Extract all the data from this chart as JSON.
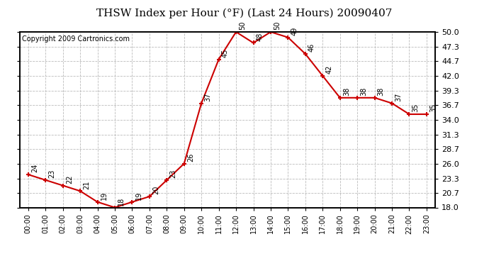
{
  "title": "THSW Index per Hour (°F) (Last 24 Hours) 20090407",
  "copyright": "Copyright 2009 Cartronics.com",
  "hours": [
    0,
    1,
    2,
    3,
    4,
    5,
    6,
    7,
    8,
    9,
    10,
    11,
    12,
    13,
    14,
    15,
    16,
    17,
    18,
    19,
    20,
    21,
    22,
    23
  ],
  "values": [
    24,
    23,
    22,
    21,
    19,
    18,
    19,
    20,
    23,
    26,
    37,
    45,
    50,
    48,
    50,
    49,
    46,
    42,
    38,
    38,
    38,
    37,
    35,
    35
  ],
  "x_labels": [
    "00:00",
    "01:00",
    "02:00",
    "03:00",
    "04:00",
    "05:00",
    "06:00",
    "07:00",
    "08:00",
    "09:00",
    "10:00",
    "11:00",
    "12:00",
    "13:00",
    "14:00",
    "15:00",
    "16:00",
    "17:00",
    "18:00",
    "19:00",
    "20:00",
    "21:00",
    "22:00",
    "23:00"
  ],
  "y_ticks": [
    18.0,
    20.7,
    23.3,
    26.0,
    28.7,
    31.3,
    34.0,
    36.7,
    39.3,
    42.0,
    44.7,
    47.3,
    50.0
  ],
  "y_min": 18.0,
  "y_max": 50.0,
  "line_color": "#cc0000",
  "marker_color": "#cc0000",
  "grid_color": "#bbbbbb",
  "bg_color": "#ffffff",
  "plot_bg_color": "#ffffff",
  "title_fontsize": 11,
  "copyright_fontsize": 7,
  "tick_fontsize": 7,
  "annot_fontsize": 7
}
